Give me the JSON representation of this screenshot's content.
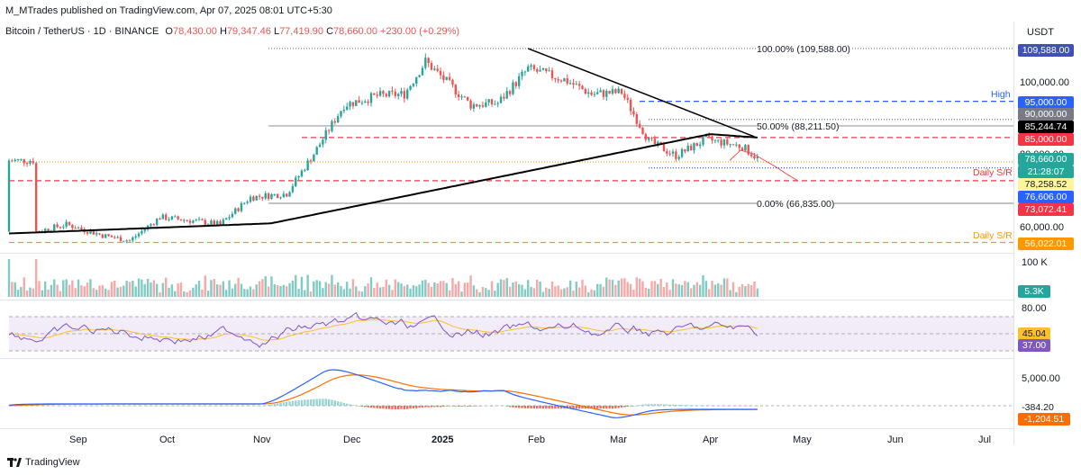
{
  "header": {
    "publisher": "M_MTrades published on TradingView.com, Apr 07, 2025 08:01 UTC+5:30",
    "symbol": "Bitcoin / TetherUS · 1D · BINANCE",
    "open_label": "O",
    "open": "78,430.00",
    "high_label": "H",
    "high": "79,347.46",
    "low_label": "L",
    "low": "77,419.90",
    "close_label": "C",
    "close": "78,660.00",
    "change": "+230.00 (+0.29%)",
    "currency": "USDT"
  },
  "annotations": {
    "fib_100": "100.00% (109,588.00)",
    "fib_50": "50.00% (88,211.50)",
    "fib_0": "0.00% (66,835.00)",
    "high": "High",
    "daily_sr_1": "Daily S/R",
    "daily_sr_2": "Daily S/R"
  },
  "price_axis": {
    "ticks": [
      "100,000.00",
      "80,000.00",
      "60,000.00"
    ],
    "badges": {
      "fib_high": "109,588.00",
      "high": "95,000.00",
      "level_90k": "90,000.00",
      "sma": "85,244.74",
      "level_85k": "85,000.00",
      "last_price": "78,660.00",
      "countdown": "21:28:07",
      "level_78k": "78,258.52",
      "level_76k": "76,606.00",
      "level_73k": "73,072.41",
      "level_56k": "56,022.01"
    }
  },
  "volume_axis": {
    "tick": "100 K",
    "badge": "5.3K"
  },
  "rsi_axis": {
    "tick": "80.00",
    "ma_value": "45.04",
    "rsi_value": "37.00"
  },
  "macd_axis": {
    "tick": "5,000.00",
    "macd_value": "-384.20",
    "signal_value": "-1,204.51"
  },
  "time_axis": [
    "Sep",
    "Oct",
    "Nov",
    "Dec",
    "2025",
    "Feb",
    "Mar",
    "Apr",
    "May",
    "Jun",
    "Jul"
  ],
  "footer": {
    "brand": "TradingView"
  },
  "colors": {
    "up": "#26a69a",
    "down": "#ef5350",
    "sma": "#000000",
    "trend": "#000000",
    "blue_dash": "#2962ff",
    "red_dash": "#f23645",
    "orange_dash": "#ff9800",
    "rsi": "#7e57c2",
    "rsi_ma": "#fbc02d",
    "macd": "#2962ff",
    "signal": "#ff6d00"
  },
  "chart_data": {
    "type": "line",
    "title": "Bitcoin / TetherUS · 1D · BINANCE",
    "x": [
      "2024-08-10",
      "2024-08-20",
      "2024-09-01",
      "2024-09-10",
      "2024-09-20",
      "2024-10-01",
      "2024-10-10",
      "2024-10-20",
      "2024-11-01",
      "2024-11-10",
      "2024-11-20",
      "2024-12-01",
      "2024-12-10",
      "2024-12-17",
      "2025-01-01",
      "2025-01-10",
      "2025-01-20",
      "2025-02-01",
      "2025-02-10",
      "2025-02-20",
      "2025-03-01",
      "2025-03-10",
      "2025-03-20",
      "2025-04-01",
      "2025-04-07"
    ],
    "series": [
      {
        "name": "",
        "values": [
          59000,
          61000,
          58000,
          56500,
          63000,
          62000,
          61000,
          68500,
          69500,
          80500,
          94000,
          96500,
          97000,
          106000,
          94000,
          94500,
          104000,
          101000,
          97000,
          97500,
          84000,
          80000,
          84500,
          82500,
          78660
        ]
      }
    ],
    "ylim": [
      52000,
      113000
    ],
    "xlabel": "",
    "ylabel": "",
    "levels": [
      109588,
      95000,
      90000,
      88211.5,
      85244.74,
      85000,
      78660,
      78258.52,
      76606,
      73072.41,
      66835,
      56022.01
    ],
    "grid": false
  }
}
